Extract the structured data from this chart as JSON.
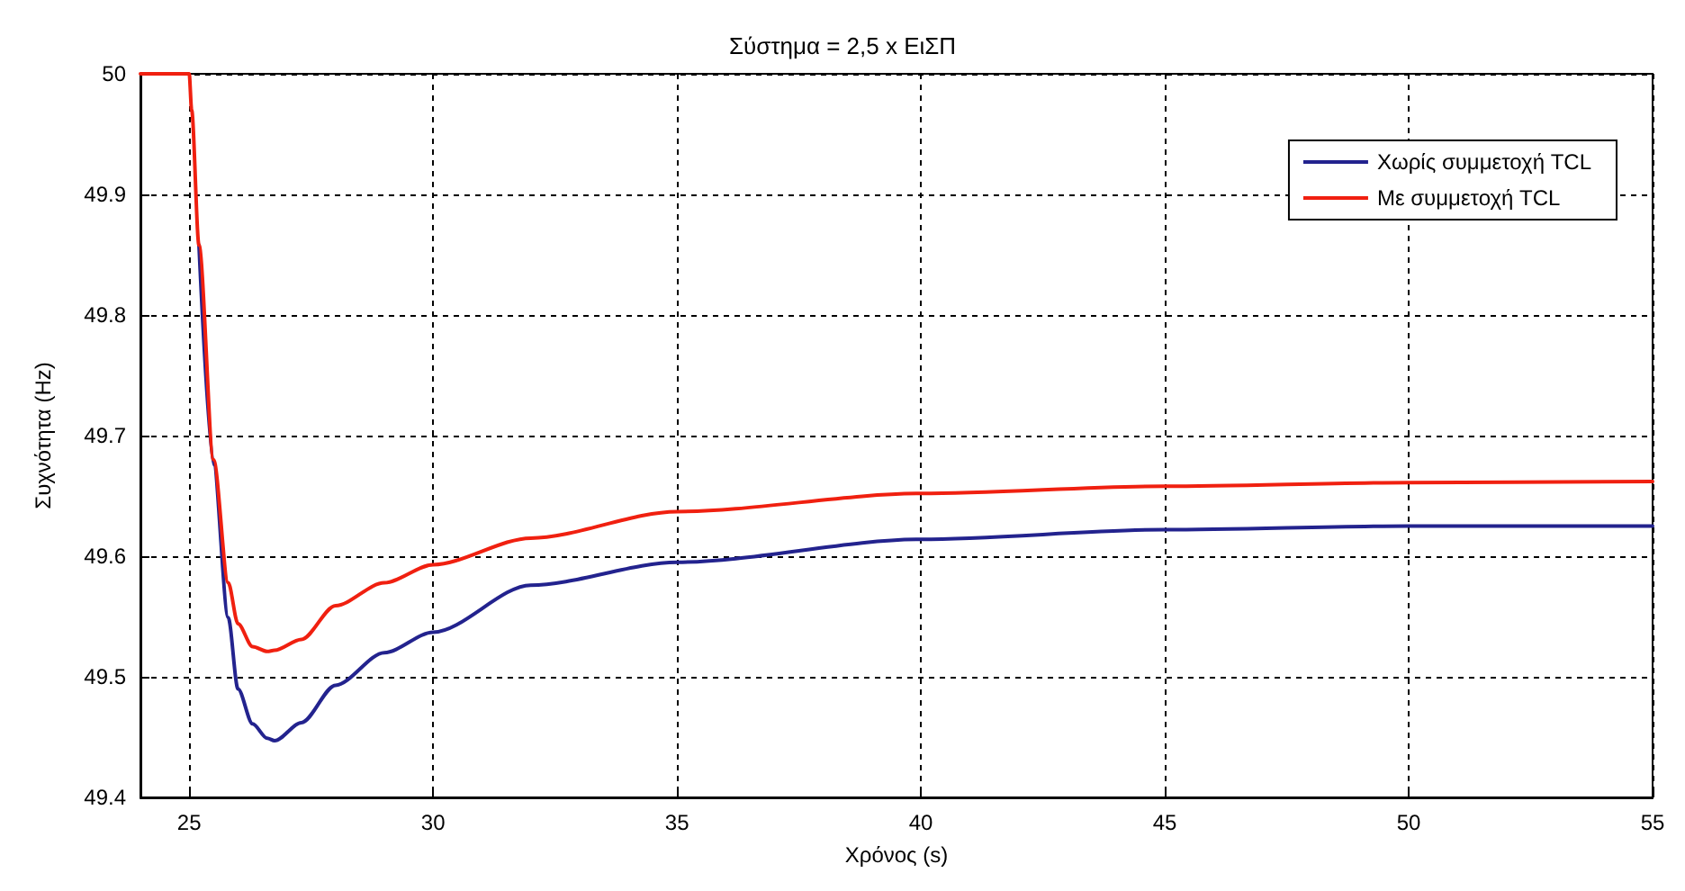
{
  "chart_data": {
    "type": "line",
    "title": "Σύστημα = 2,5 x ΕιΣΠ",
    "xlabel": "Χρόνος (s)",
    "ylabel": "Συχνότητα (Hz)",
    "xlim": [
      24,
      55
    ],
    "xticks": [
      25,
      30,
      35,
      40,
      45,
      50,
      55
    ],
    "ylim": [
      49.4,
      50
    ],
    "yticks": [
      49.4,
      49.5,
      49.6,
      49.7,
      49.8,
      49.9,
      50
    ],
    "grid": true,
    "legend": "top right",
    "line_style": "solid",
    "marker": "none",
    "x": [
      24,
      25,
      25.05,
      25.2,
      25.5,
      25.8,
      26,
      26.3,
      26.6,
      26.75,
      27.3,
      28,
      29,
      30,
      32,
      35,
      40,
      45,
      50,
      55
    ],
    "series": [
      {
        "name": "Χωρίς συμμετοχή TCL",
        "color": "#23238e",
        "values": [
          null,
          null,
          null,
          49.858,
          49.676,
          49.549,
          49.49,
          49.461,
          49.449,
          49.447,
          49.462,
          49.493,
          49.52,
          49.537,
          49.576,
          49.595,
          49.614,
          49.622,
          49.625,
          49.625
        ]
      },
      {
        "name": "Με συμμετοχή TCL",
        "color": "#f02010",
        "values": [
          50,
          50,
          49.97,
          49.858,
          49.68,
          49.578,
          49.544,
          49.525,
          49.521,
          49.522,
          49.531,
          49.559,
          49.578,
          49.593,
          49.615,
          49.637,
          49.652,
          49.658,
          49.661,
          49.662
        ]
      }
    ]
  }
}
